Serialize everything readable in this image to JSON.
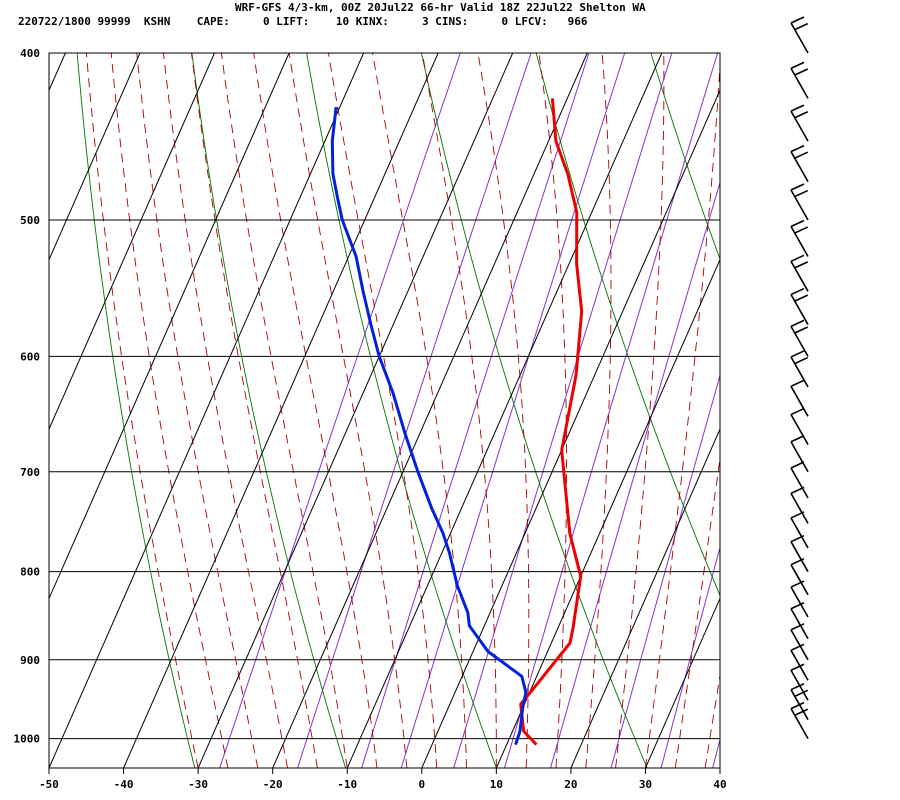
{
  "header": {
    "title": "WRF-GFS 4/3-km, 00Z 20Jul22 66-hr Valid 18Z 22Jul22 Shelton WA",
    "stats": "220722/1800 99999  KSHN    CAPE:     0 LIFT:    10 KINX:     3 CINS:     0 LFCV:   966"
  },
  "chart_data": {
    "type": "line",
    "title": "WRF-GFS 4/3-km, 00Z 20Jul22 66-hr Valid 18Z 22Jul22 Shelton WA",
    "xlabel": "",
    "ylabel": "",
    "log_y": true,
    "skew": true,
    "xlim": [
      -50,
      40
    ],
    "ylim": [
      1040,
      400
    ],
    "x_ticks": [
      -50,
      -40,
      -30,
      -20,
      -10,
      0,
      10,
      20,
      30,
      40
    ],
    "y_ticks": [
      400,
      500,
      600,
      700,
      800,
      900,
      1000
    ],
    "grid": true,
    "colors": {
      "temperature": "#ee0000",
      "dewpoint": "#0022dd",
      "isotherm": "#000000",
      "dry_adiabat": "#007700",
      "moist_adiabat": "#aa0000",
      "mixing_ratio": "#8833cc",
      "wind_barb": "#000000"
    },
    "series": [
      {
        "name": "Temperature",
        "points": [
          [
            14,
            1008
          ],
          [
            11.5,
            990
          ],
          [
            9.5,
            955
          ],
          [
            10.5,
            930
          ],
          [
            12.5,
            880
          ],
          [
            12,
            862
          ],
          [
            10,
            805
          ],
          [
            6,
            760
          ],
          [
            0,
            680
          ],
          [
            -2.5,
            615
          ],
          [
            -5.5,
            565
          ],
          [
            -9,
            530
          ],
          [
            -12,
            495
          ],
          [
            -15.5,
            470
          ],
          [
            -19,
            450
          ],
          [
            -22,
            425
          ]
        ]
      },
      {
        "name": "Dewpoint",
        "points": [
          [
            11.2,
            1008
          ],
          [
            11,
            990
          ],
          [
            10,
            960
          ],
          [
            9.5,
            940
          ],
          [
            8,
            920
          ],
          [
            2,
            890
          ],
          [
            -2,
            860
          ],
          [
            -3,
            845
          ],
          [
            -6,
            815
          ],
          [
            -9,
            780
          ],
          [
            -11,
            760
          ],
          [
            -14,
            735
          ],
          [
            -18,
            700
          ],
          [
            -22,
            665
          ],
          [
            -26,
            630
          ],
          [
            -30,
            600
          ],
          [
            -33,
            575
          ],
          [
            -36,
            550
          ],
          [
            -39,
            525
          ],
          [
            -43,
            500
          ],
          [
            -45,
            485
          ],
          [
            -47,
            470
          ],
          [
            -49,
            450
          ],
          [
            -50.5,
            430
          ]
        ]
      }
    ],
    "wind_barbs": [
      {
        "pressure": 1000,
        "barbs": 2
      },
      {
        "pressure": 975,
        "barbs": 2
      },
      {
        "pressure": 950,
        "barbs": 1
      },
      {
        "pressure": 925,
        "barbs": 1
      },
      {
        "pressure": 900,
        "barbs": 1
      },
      {
        "pressure": 875,
        "barbs": 1
      },
      {
        "pressure": 850,
        "barbs": 1
      },
      {
        "pressure": 825,
        "barbs": 1
      },
      {
        "pressure": 800,
        "barbs": 1
      },
      {
        "pressure": 775,
        "barbs": 1
      },
      {
        "pressure": 750,
        "barbs": 1
      },
      {
        "pressure": 725,
        "barbs": 1
      },
      {
        "pressure": 700,
        "barbs": 1
      },
      {
        "pressure": 675,
        "barbs": 1
      },
      {
        "pressure": 650,
        "barbs": 1
      },
      {
        "pressure": 625,
        "barbs": 2
      },
      {
        "pressure": 600,
        "barbs": 2
      },
      {
        "pressure": 575,
        "barbs": 2
      },
      {
        "pressure": 550,
        "barbs": 2
      },
      {
        "pressure": 525,
        "barbs": 2
      },
      {
        "pressure": 500,
        "barbs": 2
      },
      {
        "pressure": 475,
        "barbs": 2
      },
      {
        "pressure": 450,
        "barbs": 2
      },
      {
        "pressure": 425,
        "barbs": 2
      },
      {
        "pressure": 400,
        "barbs": 2
      }
    ]
  }
}
